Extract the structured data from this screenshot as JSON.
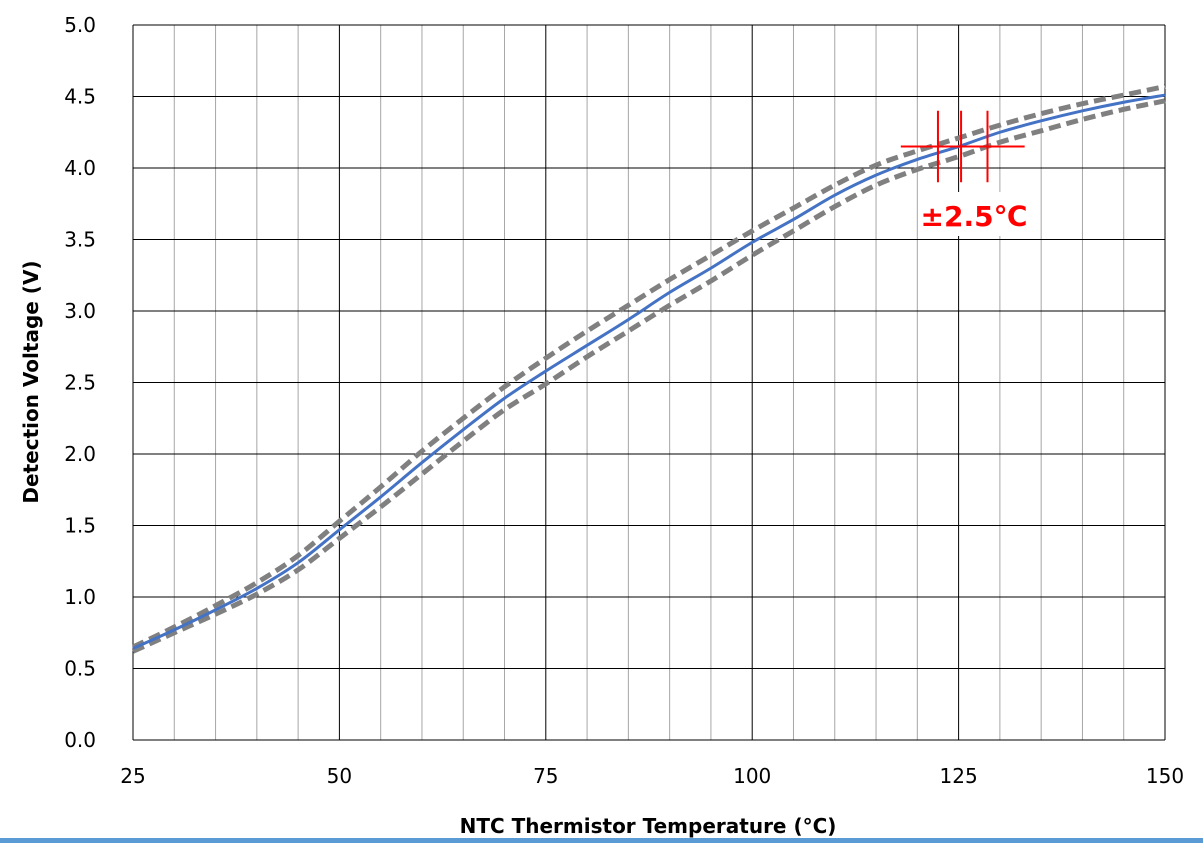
{
  "chart_data": {
    "type": "line",
    "title": "",
    "xlabel": "NTC Thermistor Temperature (°C)",
    "ylabel": "Detection Voltage (V)",
    "xlim": [
      25,
      150
    ],
    "ylim": [
      0,
      5
    ],
    "x_major_ticks": [
      "25",
      "50",
      "75",
      "100",
      "125",
      "150"
    ],
    "y_major_ticks": [
      "0.0",
      "0.5",
      "1.0",
      "1.5",
      "2.0",
      "2.5",
      "3.0",
      "3.5",
      "4.0",
      "4.5",
      "5.0"
    ],
    "x_minor_step": 5,
    "y_grid_step": 0.5,
    "grid": true,
    "legend": "none",
    "x": [
      25,
      30,
      35,
      40,
      45,
      50,
      55,
      60,
      65,
      70,
      75,
      80,
      85,
      90,
      95,
      100,
      105,
      110,
      115,
      120,
      125,
      130,
      135,
      140,
      145,
      150
    ],
    "series": [
      {
        "style": "solid",
        "color": "#4472c4",
        "values": [
          0.64,
          0.77,
          0.91,
          1.06,
          1.24,
          1.47,
          1.7,
          1.94,
          2.17,
          2.39,
          2.58,
          2.76,
          2.94,
          3.13,
          3.3,
          3.48,
          3.64,
          3.81,
          3.95,
          4.06,
          4.15,
          4.25,
          4.33,
          4.4,
          4.46,
          4.51
        ]
      },
      {
        "style": "dashed",
        "color": "#808080",
        "values": [
          0.65,
          0.79,
          0.94,
          1.1,
          1.29,
          1.53,
          1.77,
          2.02,
          2.25,
          2.47,
          2.67,
          2.86,
          3.04,
          3.22,
          3.39,
          3.56,
          3.72,
          3.88,
          4.02,
          4.12,
          4.21,
          4.3,
          4.38,
          4.45,
          4.51,
          4.57
        ]
      },
      {
        "style": "dashed",
        "color": "#808080",
        "values": [
          0.62,
          0.75,
          0.88,
          1.02,
          1.19,
          1.41,
          1.63,
          1.86,
          2.09,
          2.31,
          2.49,
          2.68,
          2.86,
          3.04,
          3.21,
          3.39,
          3.56,
          3.73,
          3.88,
          3.99,
          4.08,
          4.18,
          4.26,
          4.34,
          4.41,
          4.47
        ]
      }
    ],
    "annotation": {
      "text": "±2.5℃",
      "color": "#ff0000",
      "marker_y": 4.15,
      "marker_span_x": [
        118,
        133
      ],
      "marker_xs": [
        122.5,
        125.3,
        128.5
      ],
      "marker_half_height": 0.25
    }
  }
}
